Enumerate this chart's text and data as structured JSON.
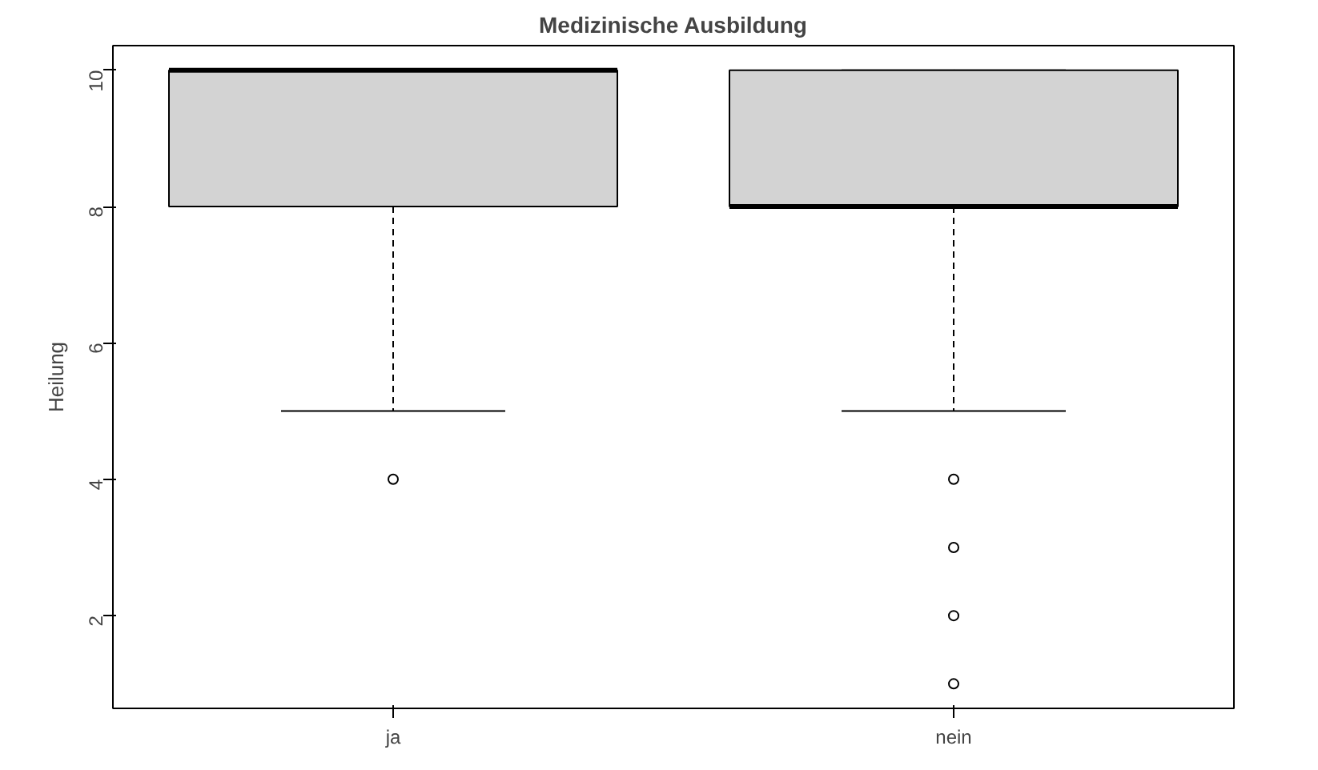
{
  "chart_data": {
    "type": "box",
    "title": "Medizinische Ausbildung",
    "ylabel": "Heilung",
    "categories": [
      "ja",
      "nein"
    ],
    "boxes": [
      {
        "low": 5,
        "q1": 8,
        "median": 10,
        "q3": 10,
        "high": 10,
        "outliers": [
          4
        ]
      },
      {
        "low": 5,
        "q1": 8,
        "median": 8,
        "q3": 10,
        "high": 10,
        "outliers": [
          4,
          3,
          2,
          1
        ]
      }
    ],
    "color": "#d3d3d3",
    "ylim": [
      0.64,
      10.36
    ],
    "yticks": [
      2,
      4,
      6,
      8,
      10
    ],
    "grid": false
  }
}
